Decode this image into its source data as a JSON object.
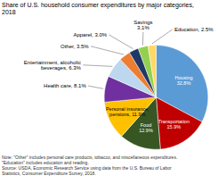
{
  "chart_data": {
    "type": "pie",
    "title": "Share of U.S. household consumer expenditures by major categories,\n2018",
    "categories": [
      "Housing\n32.8%",
      "Transportation\n15.9%",
      "Food\n12.9%",
      "Personal insurance,\npensions, 11.9%",
      "Health care, 8.1%",
      "Entertainment, alcoholic\nbeverages, 6.3%",
      "Other, 3.5%",
      "Apparel, 3.0%",
      "Savings\n3.1%",
      "Education, 2.5%"
    ],
    "values": [
      32.8,
      15.9,
      12.9,
      11.9,
      8.1,
      6.3,
      3.5,
      3.0,
      3.1,
      2.5
    ],
    "colors": [
      "#5b9bd5",
      "#c00000",
      "#375623",
      "#ffc000",
      "#7030a0",
      "#bdd7ee",
      "#ed7d31",
      "#203864",
      "#92d050",
      "#ffd966"
    ],
    "note": "Note: \"Other\" includes personal care products, tobacco, and miscellaneous expenditures.\n\"Education\" includes education and reading.\nSource: USDA, Economic Research Service using data from the U.S. Bureau of Labor\nStatistics, Consumer Expenditure Survey, 2018."
  }
}
